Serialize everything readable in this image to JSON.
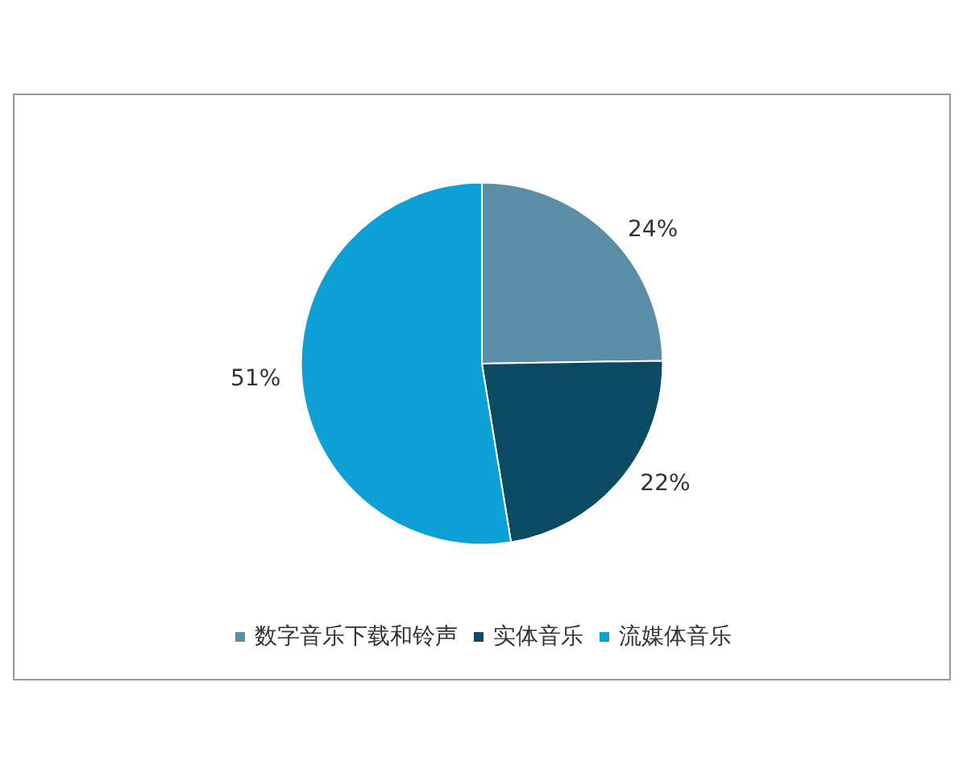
{
  "chart_data": {
    "type": "pie",
    "categories": [
      "数字音乐下载和铃声",
      "实体音乐",
      "流媒体音乐"
    ],
    "values": [
      24,
      22,
      51
    ],
    "value_labels": [
      "24%",
      "22%",
      "51%"
    ],
    "colors": [
      "#5b8ea6",
      "#0b4a63",
      "#0ca0d6"
    ],
    "legend": "bottom"
  }
}
